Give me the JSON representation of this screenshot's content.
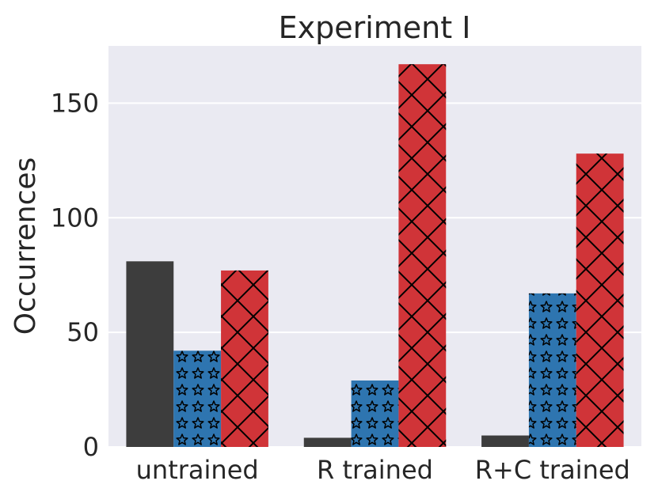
{
  "chart_data": {
    "type": "bar",
    "title": "Experiment I",
    "xlabel": "",
    "ylabel": "Occurrences",
    "categories": [
      "untrained",
      "R trained",
      "R+C trained"
    ],
    "ylim": [
      0,
      175
    ],
    "yticks": [
      0,
      50,
      100,
      150
    ],
    "grid": true,
    "legend": "none",
    "series": [
      {
        "name": "series-1",
        "color": "#3d3d3d",
        "pattern": "none",
        "values": [
          81,
          4,
          5
        ]
      },
      {
        "name": "series-2",
        "color": "#2e75b0",
        "pattern": "stars",
        "values": [
          42,
          29,
          67
        ]
      },
      {
        "name": "series-3",
        "color": "#d03438",
        "pattern": "crosshatch",
        "values": [
          77,
          167,
          128
        ]
      }
    ]
  }
}
